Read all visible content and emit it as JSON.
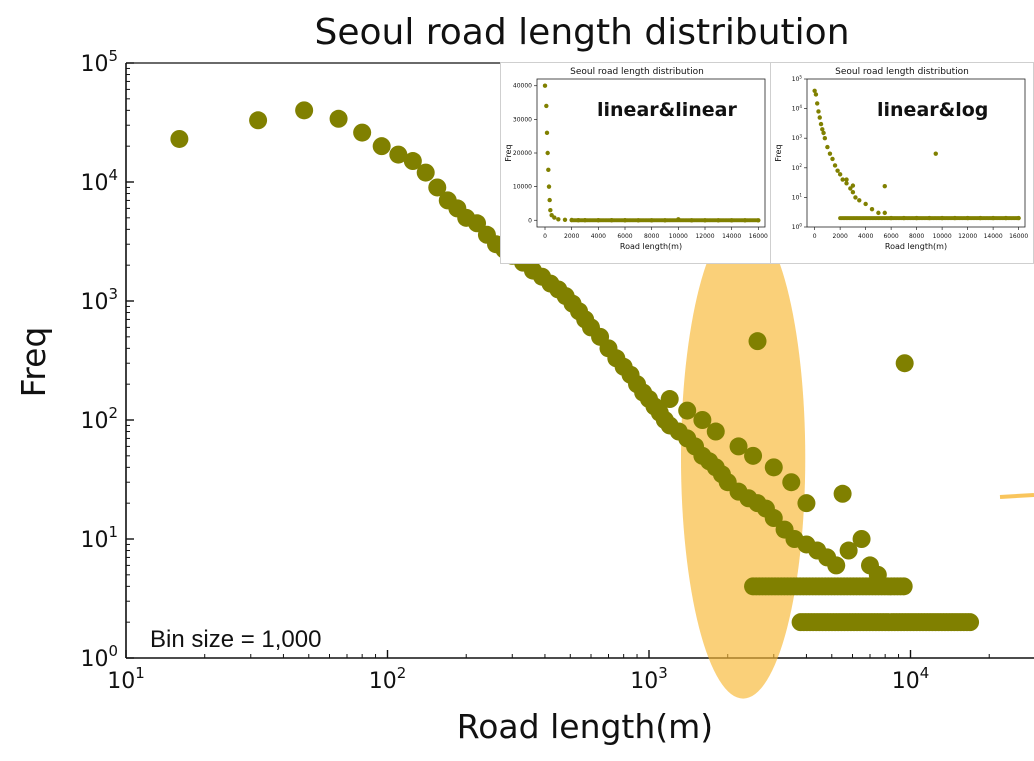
{
  "colors": {
    "point": "#808000",
    "highlight": "#f7b733",
    "axis": "#111111"
  },
  "chart_data": [
    {
      "type": "scatter",
      "title": "Seoul road length distribution",
      "xlabel": "Road length(m)",
      "ylabel": "Freq",
      "xscale": "log",
      "yscale": "log",
      "xlim": [
        10,
        50000
      ],
      "ylim": [
        1,
        100000
      ],
      "xticks": [
        {
          "value": 10,
          "base": "10",
          "exp": "1"
        },
        {
          "value": 100,
          "base": "10",
          "exp": "2"
        },
        {
          "value": 1000,
          "base": "10",
          "exp": "3"
        },
        {
          "value": 10000,
          "base": "10",
          "exp": "4"
        }
      ],
      "yticks": [
        {
          "value": 1,
          "base": "10",
          "exp": "0"
        },
        {
          "value": 10,
          "base": "10",
          "exp": "1"
        },
        {
          "value": 100,
          "base": "10",
          "exp": "2"
        },
        {
          "value": 1000,
          "base": "10",
          "exp": "3"
        },
        {
          "value": 10000,
          "base": "10",
          "exp": "4"
        },
        {
          "value": 100000,
          "base": "10",
          "exp": "5"
        }
      ],
      "annotation": "Bin size = 1,000",
      "highlight": {
        "shape": "ellipse",
        "description": "tail region",
        "x_range": [
          600,
          30000
        ],
        "y_range": [
          1.2,
          600
        ]
      },
      "series": [
        {
          "points": [
            [
              16,
              23000
            ],
            [
              32,
              33000
            ],
            [
              48,
              40000
            ],
            [
              65,
              34000
            ],
            [
              80,
              26000
            ],
            [
              95,
              20000
            ],
            [
              110,
              17000
            ],
            [
              125,
              15000
            ],
            [
              140,
              12000
            ],
            [
              155,
              9000
            ],
            [
              170,
              7000
            ],
            [
              185,
              6000
            ],
            [
              200,
              5000
            ],
            [
              220,
              4500
            ],
            [
              240,
              3600
            ],
            [
              260,
              3000
            ],
            [
              280,
              2700
            ],
            [
              300,
              2400
            ],
            [
              330,
              2100
            ],
            [
              360,
              1800
            ],
            [
              390,
              1600
            ],
            [
              420,
              1400
            ],
            [
              450,
              1250
            ],
            [
              480,
              1100
            ],
            [
              510,
              950
            ],
            [
              540,
              820
            ],
            [
              570,
              700
            ],
            [
              600,
              600
            ],
            [
              650,
              500
            ],
            [
              700,
              400
            ],
            [
              750,
              330
            ],
            [
              800,
              280
            ],
            [
              850,
              240
            ],
            [
              900,
              200
            ],
            [
              950,
              170
            ],
            [
              1000,
              150
            ],
            [
              1050,
              130
            ],
            [
              1100,
              115
            ],
            [
              1150,
              100
            ],
            [
              1200,
              90
            ],
            [
              1300,
              80
            ],
            [
              1400,
              70
            ],
            [
              1500,
              60
            ],
            [
              1600,
              50
            ],
            [
              1700,
              45
            ],
            [
              1800,
              40
            ],
            [
              1900,
              35
            ],
            [
              2000,
              30
            ],
            [
              2200,
              25
            ],
            [
              2400,
              22
            ],
            [
              2600,
              20
            ],
            [
              2800,
              18
            ],
            [
              3000,
              15
            ],
            [
              3300,
              12
            ],
            [
              3600,
              10
            ],
            [
              4000,
              9
            ],
            [
              4400,
              8
            ],
            [
              4800,
              7
            ],
            [
              5200,
              6
            ],
            [
              5800,
              8
            ],
            [
              6500,
              10
            ],
            [
              7000,
              6
            ],
            [
              7500,
              5
            ],
            [
              2600,
              460
            ],
            [
              9500,
              300
            ],
            [
              5500,
              24
            ],
            [
              3500,
              30
            ],
            [
              4000,
              20
            ],
            [
              3000,
              40
            ],
            [
              2500,
              50
            ],
            [
              2200,
              60
            ],
            [
              1800,
              80
            ],
            [
              1600,
              100
            ],
            [
              1400,
              120
            ],
            [
              1200,
              150
            ]
          ],
          "floor_points": [
            {
              "y": 4,
              "x_from": 2500,
              "x_to": 9500
            },
            {
              "y": 2,
              "x_from": 3800,
              "x_to": 17000
            }
          ]
        }
      ]
    },
    {
      "type": "scatter",
      "title": "Seoul road length distribution",
      "label": "linear&linear",
      "xlabel": "Road length(m)",
      "ylabel": "Freq",
      "xscale": "linear",
      "yscale": "linear",
      "xlim": [
        -600,
        16500
      ],
      "ylim": [
        -2000,
        42000
      ],
      "xticks": [
        "0",
        "2000",
        "4000",
        "6000",
        "8000",
        "10000",
        "12000",
        "14000",
        "16000"
      ],
      "yticks": [
        "0",
        "10000",
        "20000",
        "30000",
        "40000"
      ],
      "series": [
        {
          "points": [
            [
              0,
              40000
            ],
            [
              100,
              34000
            ],
            [
              150,
              26000
            ],
            [
              200,
              20000
            ],
            [
              250,
              15000
            ],
            [
              300,
              10000
            ],
            [
              350,
              6000
            ],
            [
              400,
              3000
            ],
            [
              500,
              1500
            ],
            [
              700,
              800
            ],
            [
              1000,
              300
            ],
            [
              1500,
              150
            ],
            [
              2000,
              80
            ],
            [
              2500,
              40
            ],
            [
              3000,
              20
            ],
            [
              4000,
              10
            ],
            [
              5000,
              5
            ],
            [
              6000,
              4
            ],
            [
              7000,
              3
            ],
            [
              8000,
              2
            ],
            [
              9000,
              2
            ],
            [
              10000,
              300
            ],
            [
              11000,
              2
            ],
            [
              12000,
              2
            ],
            [
              13000,
              2
            ],
            [
              14000,
              2
            ],
            [
              15000,
              2
            ],
            [
              16000,
              2
            ]
          ]
        }
      ]
    },
    {
      "type": "scatter",
      "title": "Seoul road length distribution",
      "label": "linear&log",
      "xlabel": "Road length(m)",
      "ylabel": "Freq",
      "xscale": "linear",
      "yscale": "log",
      "xlim": [
        -600,
        16500
      ],
      "ylim": [
        1,
        100000
      ],
      "xticks": [
        "0",
        "2000",
        "4000",
        "6000",
        "8000",
        "10000",
        "12000",
        "14000",
        "16000"
      ],
      "yticks": [
        {
          "base": "10",
          "exp": "0"
        },
        {
          "base": "10",
          "exp": "1"
        },
        {
          "base": "10",
          "exp": "2"
        },
        {
          "base": "10",
          "exp": "3"
        },
        {
          "base": "10",
          "exp": "4"
        },
        {
          "base": "10",
          "exp": "5"
        }
      ],
      "series": [
        {
          "points": [
            [
              0,
              40000
            ],
            [
              100,
              30000
            ],
            [
              200,
              15000
            ],
            [
              300,
              8000
            ],
            [
              400,
              5000
            ],
            [
              500,
              3000
            ],
            [
              600,
              2000
            ],
            [
              700,
              1500
            ],
            [
              800,
              1000
            ],
            [
              1000,
              500
            ],
            [
              1200,
              300
            ],
            [
              1400,
              200
            ],
            [
              1600,
              120
            ],
            [
              1800,
              80
            ],
            [
              2000,
              60
            ],
            [
              2200,
              40
            ],
            [
              2500,
              30
            ],
            [
              2800,
              20
            ],
            [
              3000,
              15
            ],
            [
              3200,
              10
            ],
            [
              3500,
              8
            ],
            [
              4000,
              6
            ],
            [
              4500,
              4
            ],
            [
              5000,
              3
            ],
            [
              5500,
              3
            ],
            [
              6000,
              2
            ],
            [
              7000,
              2
            ],
            [
              8000,
              2
            ],
            [
              9000,
              2
            ],
            [
              10000,
              2
            ],
            [
              9500,
              300
            ],
            [
              5500,
              24
            ],
            [
              3000,
              25
            ],
            [
              2500,
              40
            ],
            [
              11000,
              2
            ],
            [
              12000,
              2
            ],
            [
              13000,
              2
            ],
            [
              14000,
              2
            ],
            [
              15000,
              2
            ],
            [
              16000,
              2
            ]
          ]
        }
      ]
    }
  ]
}
